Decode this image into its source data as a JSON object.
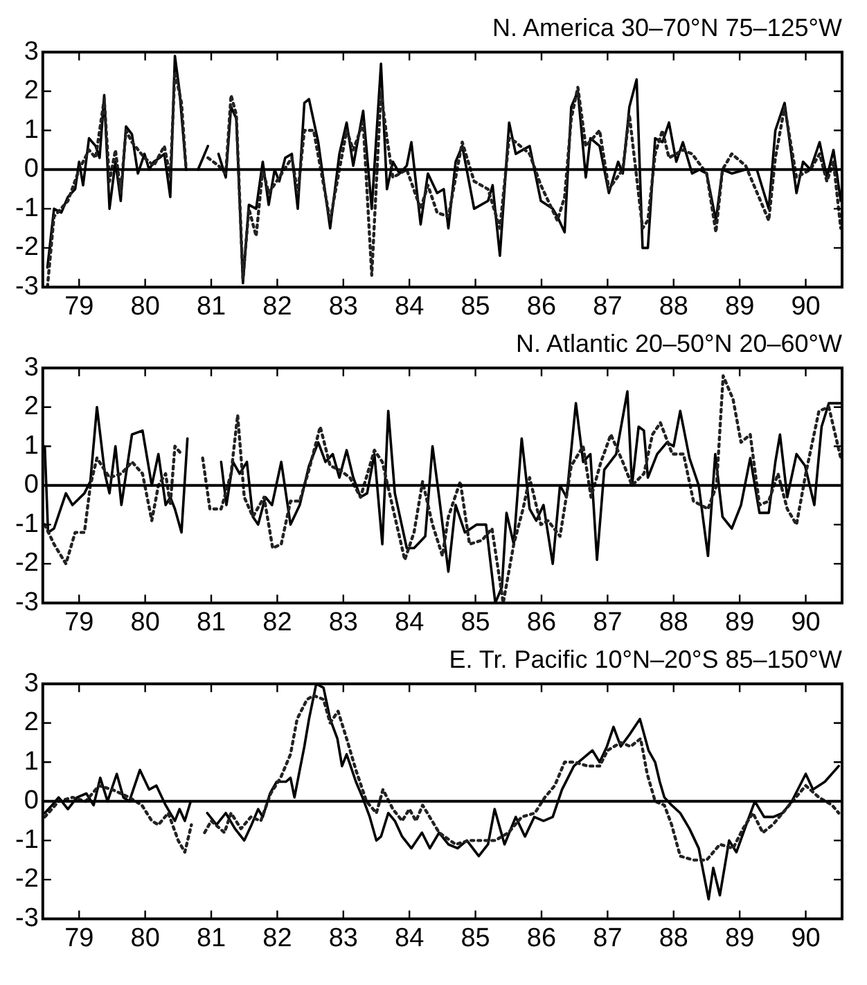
{
  "chart_data": [
    {
      "type": "line",
      "title": "N. America 30–70°N 75–125°W",
      "xlim": [
        78.45,
        90.55
      ],
      "xticks": [
        79,
        80,
        81,
        82,
        83,
        84,
        85,
        86,
        87,
        88,
        89,
        90
      ],
      "ylim": [
        -3,
        3
      ],
      "yticks": [
        -3,
        -2,
        -1,
        0,
        1,
        2,
        3
      ],
      "grid": false,
      "legend": false,
      "marker": "none",
      "ref_lines": [
        {
          "axis": "y",
          "value": 0,
          "color": "#000000",
          "line_style": "solid"
        }
      ],
      "series": [
        {
          "color": "#000000",
          "line_style": "solid",
          "x": [
            78.52,
            78.62,
            78.73,
            78.83,
            78.94,
            79.0,
            79.06,
            79.15,
            79.25,
            79.31,
            79.38,
            79.46,
            79.55,
            79.63,
            79.71,
            79.8,
            79.89,
            79.99,
            80.06,
            80.13,
            80.22,
            80.29,
            80.38,
            80.45,
            80.52,
            80.62,
            80.7,
            80.8,
            80.95,
            81.03,
            81.11,
            81.22,
            81.3,
            81.38,
            81.48,
            81.57,
            81.68,
            81.78,
            81.87,
            81.96,
            82.03,
            82.12,
            82.22,
            82.31,
            82.41,
            82.48,
            82.62,
            82.8,
            82.94,
            83.05,
            83.15,
            83.3,
            83.43,
            83.57,
            83.66,
            83.75,
            83.85,
            83.96,
            84.03,
            84.17,
            84.28,
            84.42,
            84.52,
            84.59,
            84.7,
            84.8,
            84.98,
            85.19,
            85.26,
            85.37,
            85.51,
            85.61,
            85.82,
            85.99,
            86.17,
            86.24,
            86.35,
            86.45,
            86.55,
            86.67,
            86.74,
            86.88,
            87.02,
            87.16,
            87.23,
            87.33,
            87.44,
            87.53,
            87.61,
            87.72,
            87.83,
            87.93,
            88.04,
            88.14,
            88.28,
            88.39,
            88.5,
            88.64,
            88.74,
            88.88,
            89.09,
            89.26,
            89.44,
            89.54,
            89.68,
            89.86,
            89.96,
            90.07,
            90.21,
            90.32,
            90.42,
            90.53
          ],
          "values": [
            -2.5,
            -1.0,
            -1.1,
            -0.7,
            -0.5,
            0.2,
            -0.4,
            0.8,
            0.6,
            0.3,
            1.9,
            -1.0,
            0.2,
            -0.8,
            1.1,
            0.9,
            -0.1,
            0.4,
            0.0,
            0.2,
            0.3,
            0.4,
            -0.7,
            2.9,
            2.0,
            0.0,
            null,
            0.0,
            0.6,
            null,
            0.4,
            -0.2,
            1.6,
            1.3,
            -2.9,
            -0.9,
            -1.0,
            0.2,
            -0.9,
            0.0,
            -0.3,
            0.3,
            0.4,
            -1.0,
            1.7,
            1.8,
            0.7,
            -1.5,
            0.4,
            1.2,
            0.1,
            1.5,
            -1.0,
            2.7,
            -0.5,
            0.2,
            -0.1,
            0.1,
            0.7,
            -1.4,
            -0.1,
            -0.6,
            -0.5,
            -1.5,
            0.2,
            0.6,
            -1.0,
            -0.8,
            -0.4,
            -2.2,
            1.2,
            0.4,
            0.6,
            -0.8,
            -1.0,
            -1.2,
            -1.6,
            1.6,
            2.0,
            -0.2,
            0.8,
            0.6,
            -0.6,
            0.2,
            -0.1,
            1.6,
            2.3,
            -2.0,
            -2.0,
            0.8,
            0.7,
            1.2,
            0.2,
            0.7,
            -0.1,
            0.0,
            -0.1,
            -1.3,
            0.0,
            -0.1,
            0.0,
            0.0,
            -1.0,
            1.0,
            1.7,
            -0.6,
            0.2,
            0.0,
            0.7,
            -0.2,
            0.5,
            -0.8
          ]
        },
        {
          "color": "#222222",
          "line_style": "dotted",
          "x": [
            78.52,
            78.62,
            78.83,
            79.0,
            79.15,
            79.25,
            79.38,
            79.46,
            79.55,
            79.63,
            79.71,
            79.8,
            79.99,
            80.13,
            80.29,
            80.38,
            80.45,
            80.55,
            80.62,
            80.8,
            80.95,
            81.11,
            81.22,
            81.3,
            81.38,
            81.48,
            81.57,
            81.68,
            81.78,
            81.87,
            82.03,
            82.22,
            82.31,
            82.41,
            82.55,
            82.8,
            82.94,
            83.05,
            83.15,
            83.3,
            83.43,
            83.57,
            83.66,
            83.75,
            83.96,
            84.17,
            84.28,
            84.42,
            84.59,
            84.8,
            84.98,
            85.19,
            85.37,
            85.51,
            85.61,
            85.82,
            85.99,
            86.24,
            86.35,
            86.45,
            86.55,
            86.67,
            86.88,
            87.02,
            87.23,
            87.33,
            87.53,
            87.61,
            87.72,
            87.83,
            87.93,
            88.14,
            88.28,
            88.5,
            88.64,
            88.74,
            88.88,
            89.09,
            89.44,
            89.54,
            89.68,
            89.86,
            90.07,
            90.21,
            90.32,
            90.42,
            90.53
          ],
          "values": [
            -3.0,
            -1.2,
            -0.8,
            0.0,
            0.5,
            0.3,
            1.8,
            -0.3,
            0.5,
            -0.6,
            1.0,
            0.7,
            0.3,
            0.1,
            0.6,
            -0.2,
            2.5,
            1.7,
            0.0,
            null,
            0.3,
            0.1,
            -0.1,
            1.9,
            1.4,
            -2.8,
            -1.0,
            -1.7,
            0.0,
            -0.6,
            -0.2,
            0.3,
            -0.6,
            1.0,
            1.0,
            -1.3,
            0.0,
            1.0,
            0.5,
            1.2,
            -2.7,
            2.0,
            0.8,
            -0.2,
            0.0,
            -1.0,
            -0.4,
            -1.1,
            -1.2,
            0.7,
            -0.3,
            -0.5,
            -1.5,
            0.8,
            0.7,
            0.4,
            -0.4,
            -1.3,
            -0.7,
            1.3,
            2.1,
            0.6,
            1.0,
            -0.5,
            0.0,
            1.4,
            -1.5,
            -1.3,
            0.4,
            1.0,
            0.3,
            0.5,
            0.4,
            -0.1,
            -1.6,
            0.0,
            0.4,
            0.1,
            -1.3,
            0.3,
            1.6,
            -0.2,
            0.0,
            0.4,
            -0.3,
            0.2,
            -1.5
          ]
        }
      ]
    },
    {
      "type": "line",
      "title": "N. Atlantic 20–50°N 20–60°W",
      "xlim": [
        78.45,
        90.55
      ],
      "xticks": [
        79,
        80,
        81,
        82,
        83,
        84,
        85,
        86,
        87,
        88,
        89,
        90
      ],
      "ylim": [
        -3,
        3
      ],
      "yticks": [
        -3,
        -2,
        -1,
        0,
        1,
        2,
        3
      ],
      "grid": false,
      "legend": false,
      "marker": "none",
      "ref_lines": [
        {
          "axis": "y",
          "value": 0,
          "color": "#000000",
          "line_style": "solid"
        }
      ],
      "series": [
        {
          "color": "#000000",
          "line_style": "solid",
          "x": [
            78.48,
            78.53,
            78.62,
            78.8,
            78.9,
            79.08,
            79.17,
            79.27,
            79.39,
            79.46,
            79.55,
            79.64,
            79.8,
            79.96,
            80.1,
            80.2,
            80.31,
            80.38,
            80.45,
            80.55,
            80.64,
            80.9,
            81.15,
            81.23,
            81.33,
            81.43,
            81.54,
            81.63,
            81.71,
            81.82,
            81.92,
            82.06,
            82.2,
            82.34,
            82.48,
            82.62,
            82.73,
            82.84,
            82.94,
            83.05,
            83.15,
            83.26,
            83.36,
            83.47,
            83.59,
            83.68,
            83.78,
            83.96,
            84.07,
            84.24,
            84.35,
            84.45,
            84.59,
            84.7,
            84.84,
            85.02,
            85.16,
            85.3,
            85.4,
            85.47,
            85.58,
            85.7,
            85.82,
            85.92,
            86.03,
            86.17,
            86.28,
            86.38,
            86.52,
            86.63,
            86.74,
            86.84,
            86.95,
            87.13,
            87.3,
            87.37,
            87.47,
            87.55,
            87.61,
            87.75,
            87.9,
            88.0,
            88.1,
            88.24,
            88.38,
            88.52,
            88.63,
            88.74,
            88.88,
            89.02,
            89.16,
            89.3,
            89.44,
            89.54,
            89.61,
            89.72,
            89.86,
            89.99,
            90.13,
            90.24,
            90.35,
            90.53
          ],
          "values": [
            1.0,
            -1.2,
            -1.1,
            -0.2,
            -0.5,
            -0.2,
            0.1,
            2.0,
            0.3,
            -0.2,
            1.0,
            -0.5,
            1.3,
            1.4,
            0.0,
            0.8,
            -0.5,
            -0.3,
            -0.6,
            -1.2,
            1.2,
            null,
            0.6,
            -0.5,
            0.6,
            0.3,
            0.6,
            -0.8,
            -1.0,
            -0.3,
            -0.5,
            0.6,
            -1.0,
            -0.5,
            0.5,
            1.1,
            0.6,
            0.8,
            0.2,
            0.9,
            0.2,
            -0.3,
            -0.2,
            0.8,
            -1.5,
            1.9,
            -0.2,
            -1.6,
            -1.6,
            -1.3,
            1.0,
            -0.3,
            -2.2,
            -0.5,
            -1.2,
            -1.0,
            -1.0,
            -3.0,
            -2.6,
            -0.7,
            -1.5,
            1.2,
            -0.6,
            -0.9,
            -0.5,
            -2.0,
            0.0,
            -0.3,
            2.1,
            0.6,
            0.8,
            -1.9,
            0.4,
            0.8,
            2.4,
            0.0,
            1.5,
            1.4,
            0.2,
            0.8,
            1.1,
            1.0,
            1.9,
            0.7,
            0.0,
            -1.8,
            0.8,
            -0.8,
            -1.1,
            -0.5,
            0.7,
            -0.7,
            -0.7,
            0.6,
            1.3,
            -0.3,
            0.8,
            0.5,
            -0.5,
            1.5,
            2.1,
            2.1
          ]
        },
        {
          "color": "#222222",
          "line_style": "dotted",
          "x": [
            78.48,
            78.62,
            78.8,
            78.94,
            79.08,
            79.17,
            79.27,
            79.46,
            79.64,
            79.8,
            79.96,
            80.1,
            80.2,
            80.31,
            80.38,
            80.45,
            80.55,
            80.7,
            80.87,
            80.98,
            81.15,
            81.3,
            81.4,
            81.5,
            81.63,
            81.8,
            81.93,
            82.06,
            82.2,
            82.34,
            82.48,
            82.65,
            82.8,
            82.94,
            83.1,
            83.26,
            83.47,
            83.59,
            83.78,
            83.93,
            84.07,
            84.2,
            84.35,
            84.5,
            84.59,
            84.77,
            84.91,
            85.1,
            85.25,
            85.42,
            85.58,
            85.72,
            85.82,
            85.99,
            86.1,
            86.28,
            86.45,
            86.63,
            86.75,
            86.9,
            87.05,
            87.23,
            87.37,
            87.55,
            87.68,
            87.8,
            87.98,
            88.15,
            88.3,
            88.52,
            88.65,
            88.75,
            88.9,
            89.02,
            89.16,
            89.3,
            89.44,
            89.58,
            89.72,
            89.86,
            90.0,
            90.2,
            90.35,
            90.53
          ],
          "values": [
            -1.0,
            -1.5,
            -2.0,
            -1.2,
            -1.2,
            0.0,
            0.7,
            0.2,
            0.3,
            0.6,
            0.3,
            -0.9,
            0.0,
            0.3,
            -0.5,
            1.0,
            0.8,
            null,
            0.7,
            -0.6,
            -0.6,
            0.3,
            1.8,
            -0.3,
            -0.8,
            -0.3,
            -1.6,
            -1.5,
            -0.4,
            -0.4,
            0.4,
            1.5,
            0.5,
            0.4,
            0.2,
            -0.3,
            0.9,
            0.6,
            -0.8,
            -1.9,
            -1.2,
            0.1,
            -1.0,
            -1.8,
            -0.8,
            0.1,
            -1.5,
            -1.4,
            -1.1,
            -3.0,
            -1.5,
            -0.6,
            0.2,
            -1.0,
            -0.9,
            -1.3,
            0.5,
            1.0,
            -0.3,
            0.6,
            1.3,
            0.6,
            0.0,
            0.3,
            1.3,
            1.6,
            0.8,
            0.8,
            -0.4,
            -0.6,
            0.0,
            2.8,
            2.2,
            1.1,
            1.3,
            -0.5,
            -0.4,
            0.3,
            -0.6,
            -1.0,
            0.3,
            1.9,
            2.0,
            0.7
          ]
        }
      ]
    },
    {
      "type": "line",
      "title": "E. Tr. Pacific 10°N–20°S 85–150°W",
      "xlim": [
        78.45,
        90.55
      ],
      "xticks": [
        79,
        80,
        81,
        82,
        83,
        84,
        85,
        86,
        87,
        88,
        89,
        90
      ],
      "ylim": [
        -3,
        3
      ],
      "yticks": [
        -3,
        -2,
        -1,
        0,
        1,
        2,
        3
      ],
      "grid": false,
      "legend": false,
      "marker": "none",
      "ref_lines": [
        {
          "axis": "y",
          "value": 0,
          "color": "#000000",
          "line_style": "solid"
        }
      ],
      "series": [
        {
          "color": "#000000",
          "line_style": "solid",
          "x": [
            78.48,
            78.59,
            78.69,
            78.83,
            78.97,
            79.11,
            79.22,
            79.32,
            79.43,
            79.57,
            79.67,
            79.76,
            79.92,
            80.06,
            80.17,
            80.31,
            80.45,
            80.52,
            80.6,
            80.69,
            80.8,
            80.94,
            81.08,
            81.22,
            81.36,
            81.5,
            81.61,
            81.71,
            81.78,
            81.89,
            81.99,
            82.13,
            82.2,
            82.26,
            82.34,
            82.41,
            82.48,
            82.59,
            82.7,
            82.8,
            82.91,
            82.98,
            83.05,
            83.19,
            83.29,
            83.4,
            83.5,
            83.57,
            83.68,
            83.78,
            83.89,
            84.03,
            84.19,
            84.31,
            84.45,
            84.59,
            84.73,
            84.87,
            85.05,
            85.19,
            85.29,
            85.44,
            85.61,
            85.75,
            85.89,
            86.03,
            86.17,
            86.31,
            86.49,
            86.63,
            86.77,
            86.88,
            86.99,
            87.09,
            87.2,
            87.33,
            87.49,
            87.62,
            87.72,
            87.79,
            87.86,
            87.97,
            88.1,
            88.24,
            88.38,
            88.53,
            88.6,
            88.7,
            88.84,
            88.95,
            89.12,
            89.23,
            89.37,
            89.51,
            89.65,
            89.79,
            90.0,
            90.11,
            90.29,
            90.5
          ],
          "values": [
            -0.3,
            -0.1,
            0.1,
            -0.2,
            0.1,
            0.2,
            -0.1,
            0.6,
            0.0,
            0.7,
            0.1,
            0.0,
            0.8,
            0.3,
            0.4,
            -0.1,
            -0.5,
            -0.2,
            -0.5,
            0.0,
            null,
            -0.3,
            -0.6,
            -0.3,
            -0.7,
            -1.0,
            -0.6,
            -0.2,
            -0.4,
            0.2,
            0.5,
            0.5,
            0.6,
            0.1,
            0.8,
            1.4,
            2.1,
            3.0,
            2.9,
            2.1,
            1.6,
            0.9,
            1.2,
            0.5,
            0.1,
            -0.4,
            -1.0,
            -0.9,
            -0.3,
            -0.5,
            -0.9,
            -1.2,
            -0.8,
            -1.2,
            -0.8,
            -1.1,
            -1.2,
            -1.0,
            -1.4,
            -1.1,
            -0.2,
            -1.1,
            -0.4,
            -0.9,
            -0.4,
            -0.5,
            -0.4,
            0.3,
            0.9,
            1.1,
            1.3,
            1.0,
            1.4,
            1.9,
            1.4,
            1.7,
            2.1,
            1.3,
            1.0,
            0.5,
            0.1,
            -0.1,
            -0.3,
            -0.7,
            -1.2,
            -2.5,
            -1.7,
            -2.4,
            -1.0,
            -1.3,
            -0.5,
            0.0,
            -0.4,
            -0.4,
            -0.3,
            0.0,
            0.7,
            0.3,
            0.5,
            0.9
          ]
        },
        {
          "color": "#222222",
          "line_style": "dotted",
          "x": [
            78.48,
            78.69,
            78.9,
            79.1,
            79.3,
            79.5,
            79.76,
            79.95,
            80.1,
            80.2,
            80.35,
            80.5,
            80.6,
            80.7,
            80.8,
            80.9,
            81.0,
            81.2,
            81.3,
            81.45,
            81.6,
            81.75,
            81.9,
            82.05,
            82.2,
            82.3,
            82.45,
            82.55,
            82.7,
            82.8,
            82.92,
            83.05,
            83.19,
            83.35,
            83.5,
            83.6,
            83.75,
            83.89,
            84.0,
            84.1,
            84.2,
            84.45,
            84.7,
            84.9,
            85.1,
            85.3,
            85.5,
            85.7,
            85.9,
            86.05,
            86.2,
            86.35,
            86.5,
            86.7,
            86.88,
            87.0,
            87.2,
            87.35,
            87.5,
            87.6,
            87.72,
            87.86,
            87.97,
            88.1,
            88.3,
            88.5,
            88.7,
            88.9,
            89.05,
            89.2,
            89.35,
            89.5,
            89.7,
            89.85,
            90.0,
            90.2,
            90.4,
            90.5
          ],
          "values": [
            -0.4,
            0.0,
            0.1,
            0.0,
            0.4,
            0.3,
            0.1,
            -0.1,
            -0.5,
            -0.6,
            -0.3,
            -1.0,
            -1.3,
            -0.6,
            null,
            -0.8,
            -0.5,
            -0.8,
            -0.3,
            -0.7,
            -0.4,
            -0.5,
            0.2,
            0.6,
            1.2,
            2.1,
            2.6,
            2.7,
            2.6,
            2.0,
            2.3,
            1.6,
            0.8,
            0.0,
            -0.3,
            0.3,
            -0.2,
            -0.5,
            -0.2,
            -0.5,
            -0.1,
            -0.8,
            -1.1,
            -1.0,
            -1.0,
            -1.0,
            -0.8,
            -0.4,
            -0.3,
            0.1,
            0.4,
            1.0,
            1.0,
            0.9,
            0.9,
            1.3,
            1.5,
            1.4,
            1.6,
            0.7,
            0.0,
            -0.1,
            -0.6,
            -1.4,
            -1.5,
            -1.5,
            -1.1,
            -1.2,
            -0.7,
            -0.3,
            -0.8,
            -0.6,
            -0.2,
            0.1,
            0.4,
            0.1,
            -0.1,
            -0.3
          ]
        }
      ]
    }
  ]
}
